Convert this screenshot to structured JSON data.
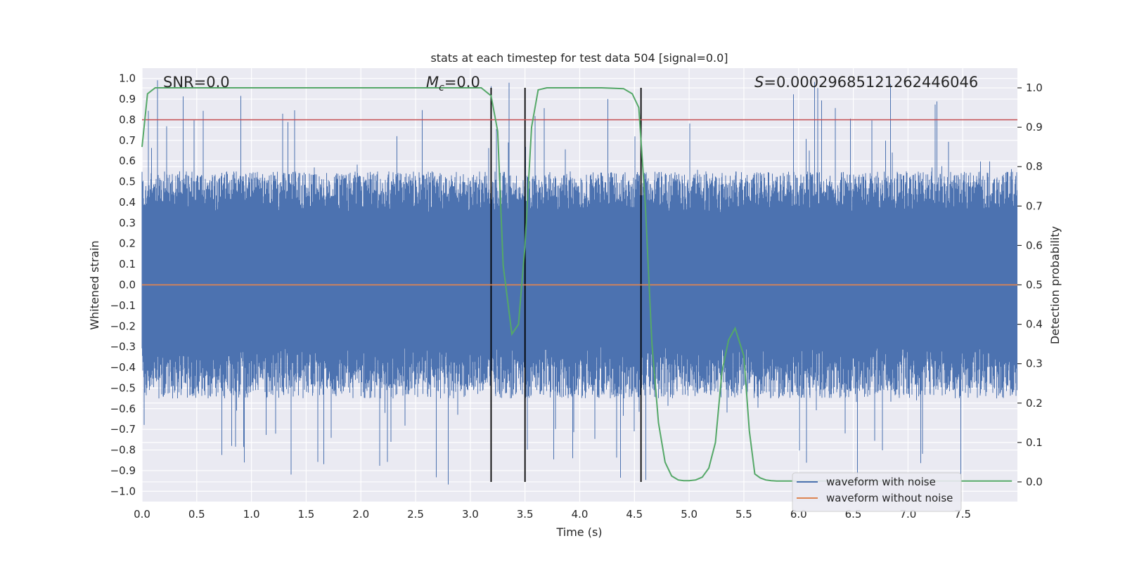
{
  "chart_data": {
    "type": "line",
    "title": "stats at each timestep for test data 504 [signal=0.0]",
    "xlabel": "Time (s)",
    "ylabel_left": "Whitened strain",
    "ylabel_right": "Detection probability",
    "xlim": [
      0.0,
      8.0
    ],
    "ylim_left": [
      -1.05,
      1.05
    ],
    "ylim_right": [
      -0.05,
      1.05
    ],
    "x_ticks": [
      0.0,
      0.5,
      1.0,
      1.5,
      2.0,
      2.5,
      3.0,
      3.5,
      4.0,
      4.5,
      5.0,
      5.5,
      6.0,
      6.5,
      7.0,
      7.5
    ],
    "x_tick_labels": [
      "0.0",
      "0.5",
      "1.0",
      "1.5",
      "2.0",
      "2.5",
      "3.0",
      "3.5",
      "4.0",
      "4.5",
      "5.0",
      "5.5",
      "6.0",
      "6.5",
      "7.0",
      "7.5"
    ],
    "y_left_ticks": [
      -1.0,
      -0.9,
      -0.8,
      -0.7,
      -0.6,
      -0.5,
      -0.4,
      -0.3,
      -0.2,
      -0.1,
      0.0,
      0.1,
      0.2,
      0.3,
      0.4,
      0.5,
      0.6,
      0.7,
      0.8,
      0.9,
      1.0
    ],
    "y_left_tick_labels": [
      "−1.0",
      "−0.9",
      "−0.8",
      "−0.7",
      "−0.6",
      "−0.5",
      "−0.4",
      "−0.3",
      "−0.2",
      "−0.1",
      "0.0",
      "0.1",
      "0.2",
      "0.3",
      "0.4",
      "0.5",
      "0.6",
      "0.7",
      "0.8",
      "0.9",
      "1.0"
    ],
    "y_right_ticks": [
      0.0,
      0.1,
      0.2,
      0.3,
      0.4,
      0.5,
      0.6,
      0.7,
      0.8,
      0.9,
      1.0
    ],
    "y_right_tick_labels": [
      "0.0",
      "0.1",
      "0.2",
      "0.3",
      "0.4",
      "0.5",
      "0.6",
      "0.7",
      "0.8",
      "0.9",
      "1.0"
    ],
    "annotations": {
      "snr": "SNR=0.0",
      "mc_symbol": "M",
      "mc_sub": "c",
      "mc_value": "=0.0",
      "s_symbol": "S",
      "s_value": "=0.0002968512126244604​6"
    },
    "threshold_line": {
      "value": 0.8,
      "color": "#c44e52"
    },
    "vertical_lines": [
      3.19,
      3.5,
      4.56
    ],
    "legend": {
      "position": "lower-right",
      "entries": [
        {
          "label": "waveform with noise",
          "color": "#4c72b0"
        },
        {
          "label": "waveform without noise",
          "color": "#dd8452"
        }
      ]
    },
    "series": [
      {
        "name": "waveform with noise",
        "color": "#4c72b0",
        "kind": "noise",
        "envelope_typical": [
          -0.55,
          0.55
        ],
        "peak_extremes": [
          -0.97,
          1.0
        ]
      },
      {
        "name": "waveform without noise",
        "color": "#dd8452",
        "kind": "flat",
        "value": 0.0
      },
      {
        "name": "detection probability",
        "color": "#55a868",
        "axis": "right",
        "x": [
          0.0,
          0.05,
          0.12,
          0.25,
          0.5,
          1.0,
          1.5,
          2.0,
          2.5,
          3.0,
          3.1,
          3.19,
          3.25,
          3.3,
          3.38,
          3.44,
          3.5,
          3.56,
          3.62,
          3.7,
          3.8,
          4.0,
          4.2,
          4.4,
          4.48,
          4.54,
          4.6,
          4.66,
          4.72,
          4.78,
          4.84,
          4.9,
          4.95,
          5.0,
          5.06,
          5.12,
          5.18,
          5.24,
          5.3,
          5.36,
          5.42,
          5.5,
          5.55,
          5.6,
          5.65,
          5.7,
          5.75,
          5.8,
          6.0,
          7.0,
          7.95
        ],
        "y": [
          0.85,
          0.985,
          1.0,
          1.0,
          1.0,
          1.0,
          1.0,
          1.0,
          1.0,
          1.0,
          1.0,
          0.98,
          0.89,
          0.55,
          0.375,
          0.4,
          0.6,
          0.9,
          0.995,
          1.0,
          1.0,
          1.0,
          1.0,
          0.998,
          0.985,
          0.95,
          0.7,
          0.35,
          0.15,
          0.05,
          0.015,
          0.005,
          0.003,
          0.003,
          0.005,
          0.012,
          0.035,
          0.1,
          0.28,
          0.36,
          0.39,
          0.32,
          0.13,
          0.02,
          0.01,
          0.005,
          0.003,
          0.002,
          0.002,
          0.002,
          0.002
        ]
      }
    ]
  }
}
